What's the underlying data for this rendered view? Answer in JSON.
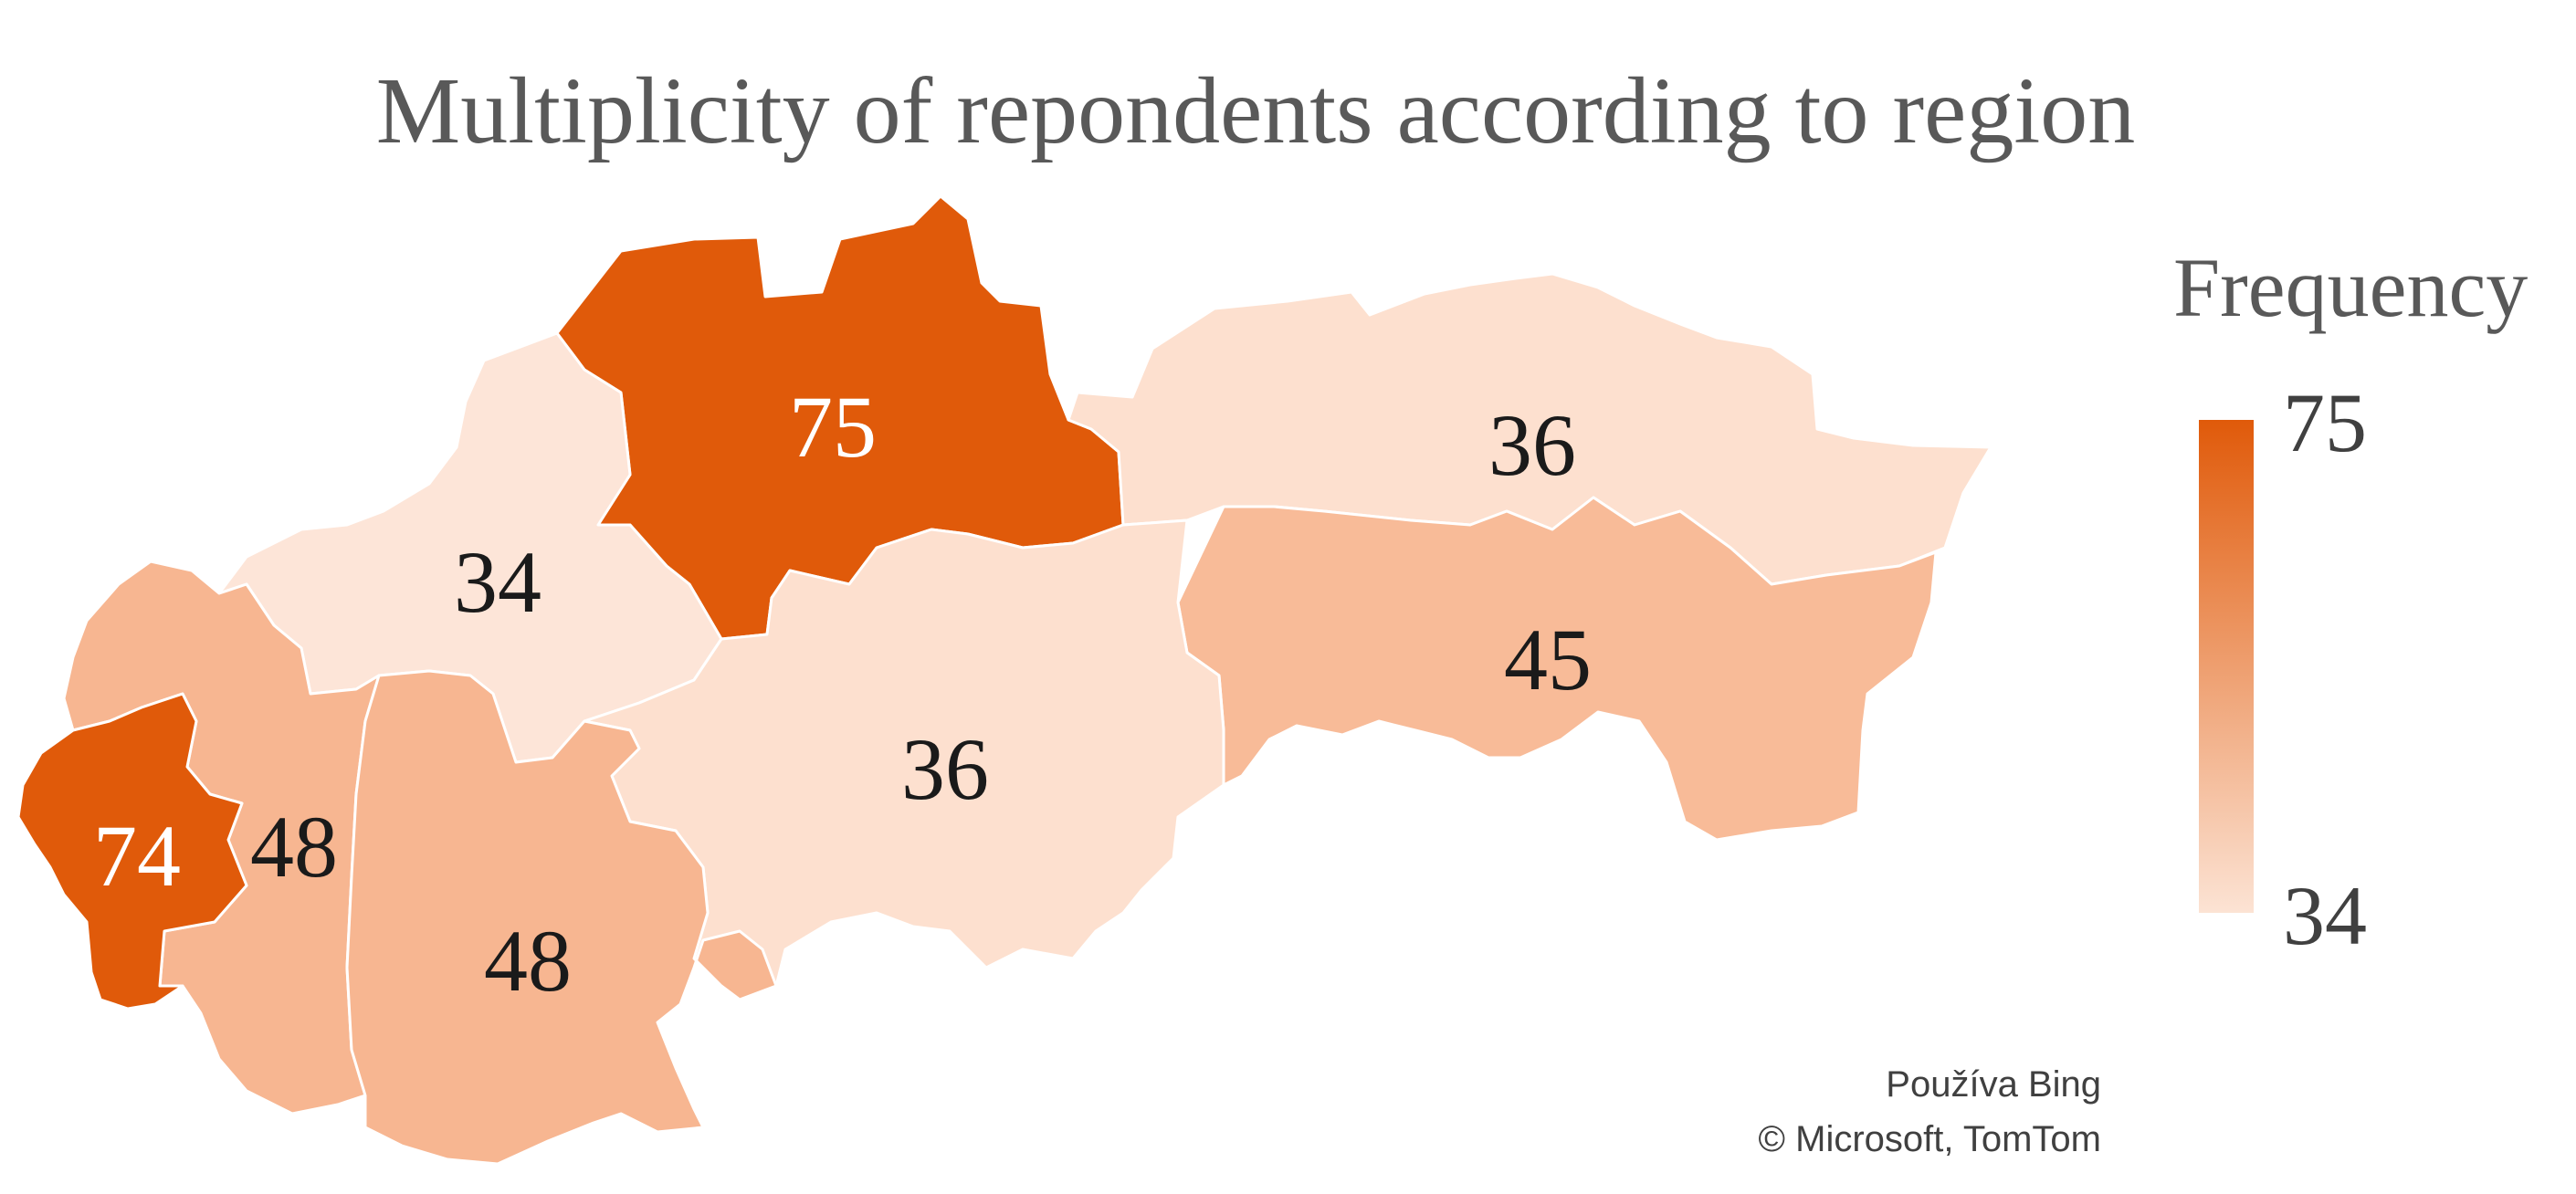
{
  "title": "Multiplicity of repondents according to region",
  "legend": {
    "title": "Frequency",
    "max": "75",
    "min": "34",
    "color_low": "#fce3d4",
    "color_high": "#e05a0a"
  },
  "attribution": {
    "line1": "Používa Bing",
    "line2": "© Microsoft, TomTom"
  },
  "regions": [
    {
      "value": 75,
      "label": "75",
      "color": "#e05a0a",
      "label_color": "#ffffff"
    },
    {
      "value": 36,
      "label": "36",
      "color": "#fde0cf",
      "label_color": "#1a1a1a"
    },
    {
      "value": 34,
      "label": "34",
      "color": "#fde5d8",
      "label_color": "#1a1a1a"
    },
    {
      "value": 45,
      "label": "45",
      "color": "#f8bb98",
      "label_color": "#1a1a1a"
    },
    {
      "value": 36,
      "label": "36",
      "color": "#fde0cf",
      "label_color": "#1a1a1a"
    },
    {
      "value": 48,
      "label": "48",
      "color": "#f7b691",
      "label_color": "#1a1a1a"
    },
    {
      "value": 48,
      "label": "48",
      "color": "#f7b691",
      "label_color": "#1a1a1a"
    },
    {
      "value": 74,
      "label": "74",
      "color": "#e05a0a",
      "label_color": "#ffffff"
    }
  ]
}
